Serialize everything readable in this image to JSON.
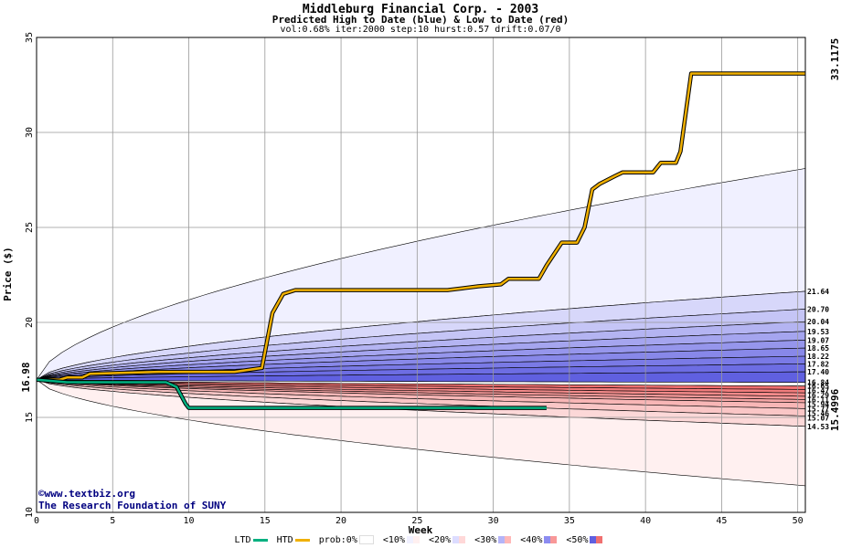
{
  "title": "Middleburg Financial Corp. - 2003",
  "subtitle": "Predicted High to Date (blue) &  Low to Date (red)",
  "params": "vol:0.68% iter:2000 step:10 hurst:0.57 drift:0.07/0",
  "credit_line1": "©www.textbiz.org",
  "credit_line2": "The Research Foundation of SUNY",
  "legend": {
    "ltd": "LTD",
    "htd": "HTD",
    "prob": "prob:0%",
    "p10": "<10%",
    "p20": "<20%",
    "p30": "<30%",
    "p40": "<40%",
    "p50": "<50%"
  },
  "colors": {
    "htd_line": "#f0b000",
    "ltd_line": "#00b080",
    "high_label": "#b07800",
    "low_label": "#008060",
    "blue_dark": "#6060e0",
    "blue_light": "#f0f0ff",
    "red_dark": "#f07070",
    "red_light": "#fff0f0",
    "grid": "#999999"
  },
  "chart_data": {
    "type": "area",
    "xlabel": "Week",
    "ylabel": "Price ($)",
    "xlim": [
      0,
      50.5
    ],
    "ylim": [
      10,
      35
    ],
    "xticks": [
      0,
      5,
      10,
      15,
      20,
      25,
      30,
      35,
      40,
      45,
      50
    ],
    "yticks": [
      10,
      15,
      20,
      25,
      30,
      35
    ],
    "grid": true,
    "start_price": 16.98,
    "start_label": "16.98",
    "high_end_label": "33.1175",
    "low_end_label": "15.4996",
    "envelope_upper_end": 28.1,
    "envelope_lower_end": 11.4,
    "upper_band_labels": [
      "21.64",
      "20.70",
      "20.04",
      "19.53",
      "19.07",
      "18.65",
      "18.22",
      "17.82",
      "17.40",
      "16.84"
    ],
    "lower_band_labels": [
      "16.65",
      "16.47",
      "16.29",
      "16.11",
      "15.94",
      "15.77",
      "15.46",
      "15.07",
      "14.53"
    ],
    "upper_band_end_values": [
      21.64,
      20.7,
      20.04,
      19.53,
      19.07,
      18.65,
      18.22,
      17.82,
      17.4,
      16.84
    ],
    "lower_band_end_values": [
      16.65,
      16.47,
      16.29,
      16.11,
      15.94,
      15.77,
      15.46,
      15.07,
      14.53
    ],
    "series": [
      {
        "name": "HTD",
        "x": [
          0,
          1.5,
          2,
          3,
          3.5,
          8,
          13,
          14.8,
          15.5,
          16.2,
          17,
          27,
          28,
          29,
          30.5,
          31,
          33,
          33.5,
          34.5,
          35.5,
          36,
          36.5,
          37,
          37.5,
          38,
          38.5,
          40.5,
          41,
          42,
          42.3,
          43,
          50.5
        ],
        "values": [
          16.98,
          16.98,
          17.1,
          17.1,
          17.3,
          17.4,
          17.4,
          17.6,
          20.5,
          21.5,
          21.7,
          21.7,
          21.8,
          21.9,
          22.0,
          22.3,
          22.3,
          23.0,
          24.2,
          24.2,
          25.0,
          27.0,
          27.3,
          27.5,
          27.7,
          27.9,
          27.9,
          28.4,
          28.4,
          29.0,
          33.1,
          33.1
        ]
      },
      {
        "name": "LTD",
        "x": [
          0,
          2,
          8.5,
          9.2,
          9.8,
          10,
          33.5
        ],
        "values": [
          16.98,
          16.85,
          16.85,
          16.6,
          15.7,
          15.5,
          15.5
        ]
      }
    ]
  }
}
